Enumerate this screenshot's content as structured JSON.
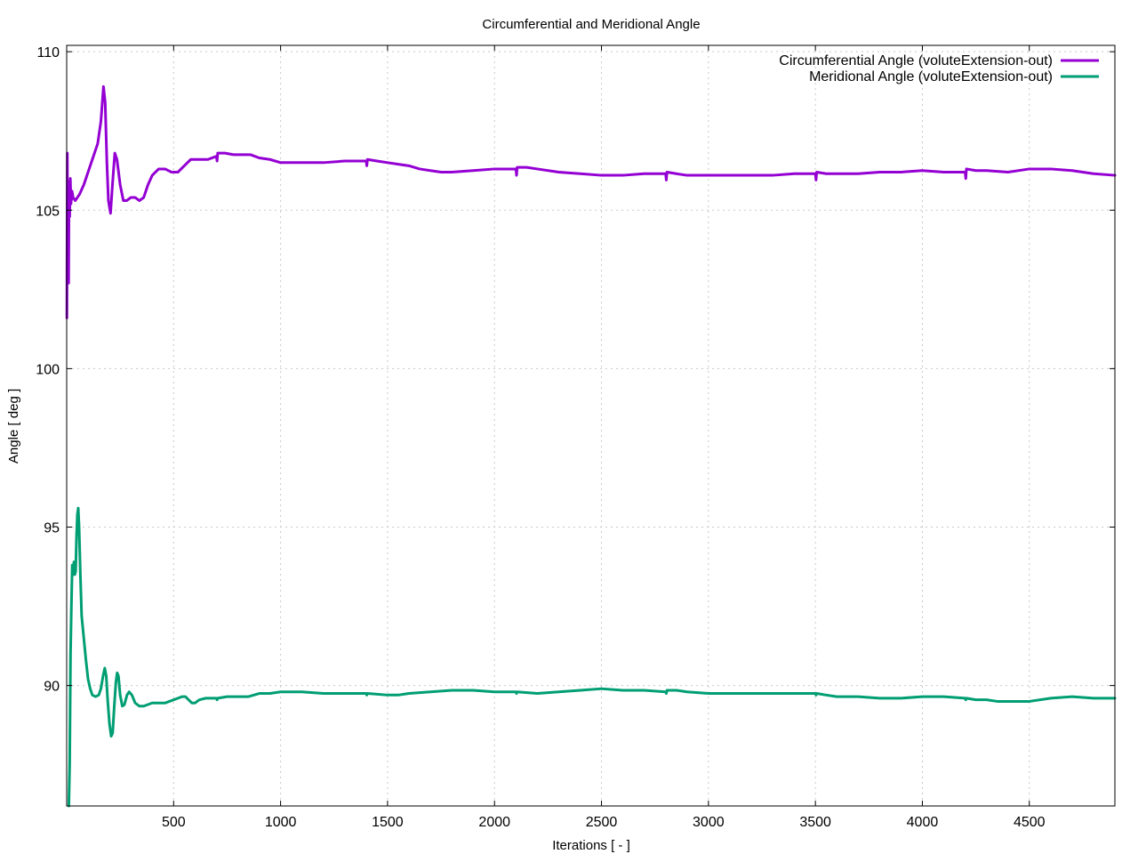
{
  "chart_data": {
    "type": "line",
    "title": "Circumferential and Meridional Angle",
    "xlabel": "Iterations [ - ]",
    "ylabel": "Angle [ deg ]",
    "xlim": [
      0,
      4900
    ],
    "ylim": [
      86.2,
      110.2
    ],
    "xticks": [
      500,
      1000,
      1500,
      2000,
      2500,
      3000,
      3500,
      4000,
      4500
    ],
    "yticks": [
      90,
      95,
      100,
      105,
      110
    ],
    "grid": true,
    "legend_position": "top-right",
    "series": [
      {
        "name": "Circumferential Angle (voluteExtension-out)",
        "color": "#9400d3",
        "points": [
          [
            1,
            101.6
          ],
          [
            3,
            106.8
          ],
          [
            5,
            103.2
          ],
          [
            7,
            105.9
          ],
          [
            9,
            102.7
          ],
          [
            11,
            105.6
          ],
          [
            14,
            104.8
          ],
          [
            17,
            106.0
          ],
          [
            20,
            105.2
          ],
          [
            25,
            105.6
          ],
          [
            30,
            105.4
          ],
          [
            40,
            105.3
          ],
          [
            60,
            105.5
          ],
          [
            80,
            105.8
          ],
          [
            100,
            106.2
          ],
          [
            120,
            106.6
          ],
          [
            145,
            107.1
          ],
          [
            160,
            107.8
          ],
          [
            172,
            108.9
          ],
          [
            180,
            108.4
          ],
          [
            188,
            106.5
          ],
          [
            195,
            105.3
          ],
          [
            205,
            104.9
          ],
          [
            215,
            105.9
          ],
          [
            225,
            106.8
          ],
          [
            235,
            106.6
          ],
          [
            250,
            105.8
          ],
          [
            265,
            105.3
          ],
          [
            280,
            105.3
          ],
          [
            300,
            105.4
          ],
          [
            320,
            105.4
          ],
          [
            340,
            105.3
          ],
          [
            360,
            105.4
          ],
          [
            380,
            105.8
          ],
          [
            400,
            106.1
          ],
          [
            430,
            106.3
          ],
          [
            460,
            106.3
          ],
          [
            490,
            106.2
          ],
          [
            520,
            106.2
          ],
          [
            550,
            106.4
          ],
          [
            580,
            106.6
          ],
          [
            620,
            106.6
          ],
          [
            660,
            106.6
          ],
          [
            700,
            106.7
          ],
          [
            703,
            106.55
          ],
          [
            706,
            106.8
          ],
          [
            740,
            106.8
          ],
          [
            780,
            106.75
          ],
          [
            820,
            106.75
          ],
          [
            860,
            106.75
          ],
          [
            900,
            106.65
          ],
          [
            950,
            106.6
          ],
          [
            1000,
            106.5
          ],
          [
            1100,
            106.5
          ],
          [
            1200,
            106.5
          ],
          [
            1300,
            106.55
          ],
          [
            1400,
            106.55
          ],
          [
            1403,
            106.4
          ],
          [
            1406,
            106.6
          ],
          [
            1450,
            106.55
          ],
          [
            1500,
            106.5
          ],
          [
            1550,
            106.45
          ],
          [
            1600,
            106.4
          ],
          [
            1650,
            106.3
          ],
          [
            1700,
            106.25
          ],
          [
            1750,
            106.2
          ],
          [
            1800,
            106.2
          ],
          [
            1900,
            106.25
          ],
          [
            2000,
            106.3
          ],
          [
            2100,
            106.3
          ],
          [
            2103,
            106.1
          ],
          [
            2106,
            106.35
          ],
          [
            2150,
            106.35
          ],
          [
            2200,
            106.3
          ],
          [
            2300,
            106.2
          ],
          [
            2400,
            106.15
          ],
          [
            2500,
            106.1
          ],
          [
            2600,
            106.1
          ],
          [
            2700,
            106.15
          ],
          [
            2800,
            106.15
          ],
          [
            2803,
            105.95
          ],
          [
            2806,
            106.2
          ],
          [
            2850,
            106.15
          ],
          [
            2900,
            106.1
          ],
          [
            3000,
            106.1
          ],
          [
            3100,
            106.1
          ],
          [
            3200,
            106.1
          ],
          [
            3300,
            106.1
          ],
          [
            3400,
            106.15
          ],
          [
            3500,
            106.15
          ],
          [
            3503,
            105.95
          ],
          [
            3506,
            106.2
          ],
          [
            3550,
            106.15
          ],
          [
            3600,
            106.15
          ],
          [
            3700,
            106.15
          ],
          [
            3800,
            106.2
          ],
          [
            3900,
            106.2
          ],
          [
            4000,
            106.25
          ],
          [
            4100,
            106.2
          ],
          [
            4200,
            106.2
          ],
          [
            4203,
            106.0
          ],
          [
            4206,
            106.3
          ],
          [
            4250,
            106.25
          ],
          [
            4300,
            106.25
          ],
          [
            4400,
            106.2
          ],
          [
            4500,
            106.3
          ],
          [
            4600,
            106.3
          ],
          [
            4700,
            106.25
          ],
          [
            4800,
            106.15
          ],
          [
            4900,
            106.1
          ]
        ]
      },
      {
        "name": "Meridional Angle (voluteExtension-out)",
        "color": "#009e73",
        "points": [
          [
            10,
            86.2
          ],
          [
            14,
            87.5
          ],
          [
            18,
            91.0
          ],
          [
            22,
            92.5
          ],
          [
            26,
            93.8
          ],
          [
            30,
            93.5
          ],
          [
            34,
            93.9
          ],
          [
            38,
            93.5
          ],
          [
            42,
            93.6
          ],
          [
            46,
            94.7
          ],
          [
            50,
            95.4
          ],
          [
            54,
            95.6
          ],
          [
            58,
            95.0
          ],
          [
            64,
            93.5
          ],
          [
            70,
            92.2
          ],
          [
            80,
            91.5
          ],
          [
            90,
            90.8
          ],
          [
            100,
            90.2
          ],
          [
            110,
            89.9
          ],
          [
            120,
            89.7
          ],
          [
            135,
            89.65
          ],
          [
            150,
            89.7
          ],
          [
            160,
            89.9
          ],
          [
            170,
            90.3
          ],
          [
            178,
            90.55
          ],
          [
            185,
            90.3
          ],
          [
            192,
            89.5
          ],
          [
            200,
            88.8
          ],
          [
            208,
            88.4
          ],
          [
            215,
            88.5
          ],
          [
            222,
            89.3
          ],
          [
            230,
            90.1
          ],
          [
            236,
            90.4
          ],
          [
            242,
            90.3
          ],
          [
            250,
            89.7
          ],
          [
            260,
            89.35
          ],
          [
            270,
            89.4
          ],
          [
            282,
            89.7
          ],
          [
            292,
            89.8
          ],
          [
            305,
            89.7
          ],
          [
            320,
            89.45
          ],
          [
            340,
            89.35
          ],
          [
            360,
            89.35
          ],
          [
            380,
            89.4
          ],
          [
            400,
            89.45
          ],
          [
            420,
            89.45
          ],
          [
            440,
            89.45
          ],
          [
            460,
            89.45
          ],
          [
            480,
            89.5
          ],
          [
            500,
            89.55
          ],
          [
            520,
            89.6
          ],
          [
            540,
            89.65
          ],
          [
            555,
            89.65
          ],
          [
            570,
            89.55
          ],
          [
            585,
            89.45
          ],
          [
            600,
            89.45
          ],
          [
            620,
            89.55
          ],
          [
            650,
            89.6
          ],
          [
            700,
            89.6
          ],
          [
            703,
            89.55
          ],
          [
            706,
            89.6
          ],
          [
            750,
            89.65
          ],
          [
            800,
            89.65
          ],
          [
            850,
            89.65
          ],
          [
            900,
            89.75
          ],
          [
            950,
            89.75
          ],
          [
            1000,
            89.8
          ],
          [
            1100,
            89.8
          ],
          [
            1200,
            89.75
          ],
          [
            1300,
            89.75
          ],
          [
            1400,
            89.75
          ],
          [
            1403,
            89.7
          ],
          [
            1406,
            89.75
          ],
          [
            1500,
            89.7
          ],
          [
            1550,
            89.7
          ],
          [
            1600,
            89.75
          ],
          [
            1700,
            89.8
          ],
          [
            1800,
            89.85
          ],
          [
            1900,
            89.85
          ],
          [
            2000,
            89.8
          ],
          [
            2100,
            89.8
          ],
          [
            2103,
            89.75
          ],
          [
            2106,
            89.8
          ],
          [
            2200,
            89.75
          ],
          [
            2300,
            89.8
          ],
          [
            2400,
            89.85
          ],
          [
            2500,
            89.9
          ],
          [
            2600,
            89.85
          ],
          [
            2700,
            89.85
          ],
          [
            2800,
            89.8
          ],
          [
            2803,
            89.75
          ],
          [
            2806,
            89.85
          ],
          [
            2850,
            89.85
          ],
          [
            2900,
            89.8
          ],
          [
            3000,
            89.75
          ],
          [
            3100,
            89.75
          ],
          [
            3200,
            89.75
          ],
          [
            3300,
            89.75
          ],
          [
            3400,
            89.75
          ],
          [
            3500,
            89.75
          ],
          [
            3503,
            89.7
          ],
          [
            3506,
            89.75
          ],
          [
            3550,
            89.7
          ],
          [
            3600,
            89.65
          ],
          [
            3700,
            89.65
          ],
          [
            3800,
            89.6
          ],
          [
            3900,
            89.6
          ],
          [
            4000,
            89.65
          ],
          [
            4100,
            89.65
          ],
          [
            4200,
            89.6
          ],
          [
            4203,
            89.55
          ],
          [
            4206,
            89.6
          ],
          [
            4250,
            89.55
          ],
          [
            4300,
            89.55
          ],
          [
            4350,
            89.5
          ],
          [
            4400,
            89.5
          ],
          [
            4500,
            89.5
          ],
          [
            4600,
            89.6
          ],
          [
            4700,
            89.65
          ],
          [
            4800,
            89.6
          ],
          [
            4900,
            89.6
          ]
        ]
      }
    ]
  }
}
